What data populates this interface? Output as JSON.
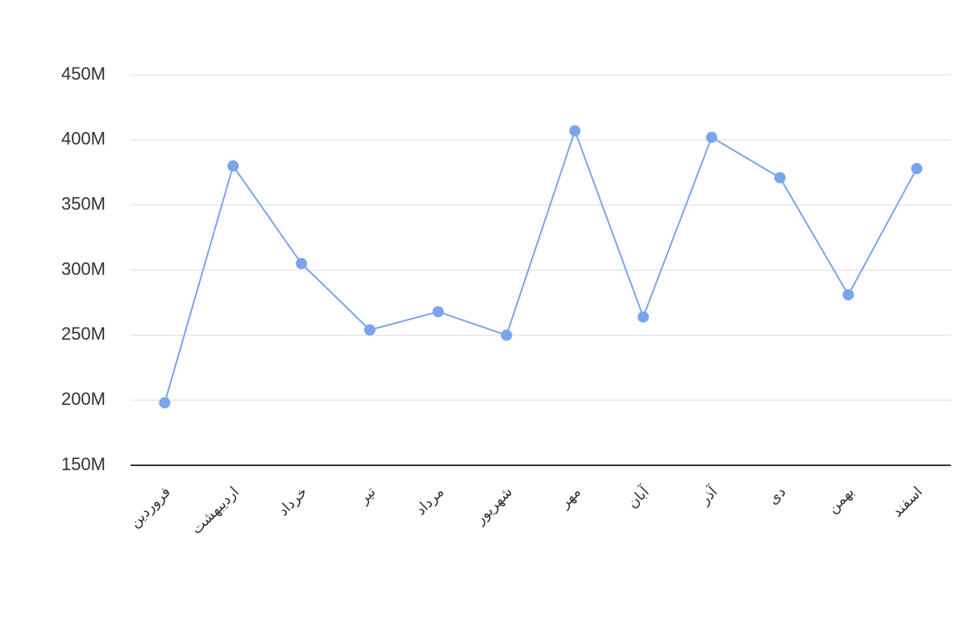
{
  "chart_data": {
    "type": "line",
    "categories": [
      "فروردین",
      "اردیبهشت",
      "خرداد",
      "تیر",
      "مرداد",
      "شهریور",
      "مهر",
      "آبان",
      "آذر",
      "دی",
      "بهمن",
      "اسفند"
    ],
    "values": [
      198000000,
      380000000,
      305000000,
      254000000,
      268000000,
      250000000,
      407000000,
      264000000,
      402000000,
      371000000,
      281000000,
      378000000
    ],
    "color": "#7ba4ec",
    "ylim": [
      150000000,
      450000000
    ],
    "yticks": [
      {
        "value": 150000000,
        "label": "150M"
      },
      {
        "value": 200000000,
        "label": "200M"
      },
      {
        "value": 250000000,
        "label": "250M"
      },
      {
        "value": 300000000,
        "label": "300M"
      },
      {
        "value": 350000000,
        "label": "350M"
      },
      {
        "value": 400000000,
        "label": "400M"
      },
      {
        "value": 450000000,
        "label": "450M"
      }
    ],
    "grid": true
  }
}
